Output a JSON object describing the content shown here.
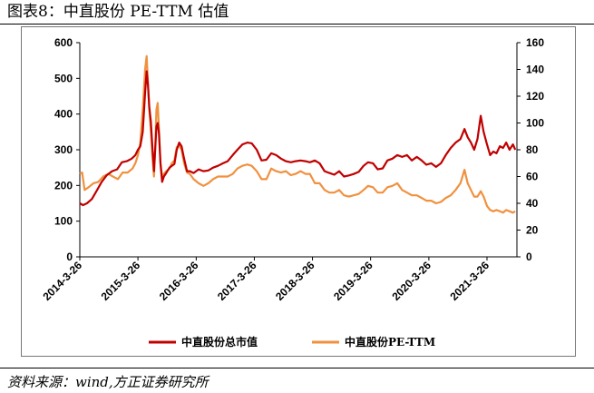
{
  "title": "图表8：中直股份 PE-TTM 估值",
  "source": "资料来源：wind,方正证券研究所",
  "chart_data": {
    "type": "line",
    "title": "",
    "xlabel": "",
    "ylabel": "",
    "ylim": [
      0,
      600
    ],
    "y2lim": [
      0,
      160
    ],
    "yticks": [
      0,
      100,
      200,
      300,
      400,
      500,
      600
    ],
    "y2ticks": [
      0,
      20,
      40,
      60,
      80,
      100,
      120,
      140,
      160
    ],
    "x_range": [
      "2014-03-26",
      "2021-09-30"
    ],
    "xticks": [
      "2014-3-26",
      "2015-3-26",
      "2016-3-26",
      "2017-3-26",
      "2018-3-26",
      "2019-3-26",
      "2020-3-26",
      "2021-3-26"
    ],
    "legend_position": "bottom",
    "series": [
      {
        "name": "中直股份总市值",
        "axis": "left",
        "color": "#c00000",
        "points": [
          [
            "2014-03-26",
            150
          ],
          [
            "2014-04-15",
            145
          ],
          [
            "2014-05-10",
            150
          ],
          [
            "2014-06-10",
            162
          ],
          [
            "2014-07-10",
            185
          ],
          [
            "2014-08-10",
            210
          ],
          [
            "2014-09-10",
            228
          ],
          [
            "2014-10-15",
            240
          ],
          [
            "2014-11-15",
            245
          ],
          [
            "2014-12-15",
            265
          ],
          [
            "2015-01-15",
            268
          ],
          [
            "2015-02-15",
            275
          ],
          [
            "2015-03-10",
            285
          ],
          [
            "2015-03-26",
            300
          ],
          [
            "2015-04-10",
            310
          ],
          [
            "2015-04-25",
            350
          ],
          [
            "2015-05-10",
            460
          ],
          [
            "2015-05-20",
            520
          ],
          [
            "2015-05-28",
            480
          ],
          [
            "2015-06-05",
            420
          ],
          [
            "2015-06-15",
            380
          ],
          [
            "2015-06-25",
            305
          ],
          [
            "2015-07-05",
            240
          ],
          [
            "2015-07-12",
            300
          ],
          [
            "2015-07-20",
            365
          ],
          [
            "2015-07-28",
            375
          ],
          [
            "2015-08-05",
            345
          ],
          [
            "2015-08-15",
            260
          ],
          [
            "2015-08-25",
            210
          ],
          [
            "2015-09-05",
            225
          ],
          [
            "2015-09-20",
            235
          ],
          [
            "2015-10-10",
            250
          ],
          [
            "2015-10-25",
            255
          ],
          [
            "2015-11-10",
            260
          ],
          [
            "2015-11-25",
            300
          ],
          [
            "2015-12-10",
            320
          ],
          [
            "2015-12-25",
            310
          ],
          [
            "2016-01-10",
            275
          ],
          [
            "2016-01-28",
            240
          ],
          [
            "2016-02-15",
            240
          ],
          [
            "2016-03-10",
            235
          ],
          [
            "2016-04-10",
            245
          ],
          [
            "2016-05-10",
            240
          ],
          [
            "2016-06-10",
            242
          ],
          [
            "2016-07-10",
            250
          ],
          [
            "2016-08-10",
            255
          ],
          [
            "2016-09-10",
            262
          ],
          [
            "2016-10-10",
            268
          ],
          [
            "2016-11-10",
            285
          ],
          [
            "2016-12-10",
            300
          ],
          [
            "2017-01-10",
            315
          ],
          [
            "2017-02-10",
            320
          ],
          [
            "2017-03-10",
            318
          ],
          [
            "2017-04-10",
            300
          ],
          [
            "2017-05-10",
            270
          ],
          [
            "2017-06-10",
            272
          ],
          [
            "2017-07-10",
            290
          ],
          [
            "2017-08-10",
            285
          ],
          [
            "2017-09-10",
            275
          ],
          [
            "2017-10-10",
            268
          ],
          [
            "2017-11-10",
            265
          ],
          [
            "2017-12-10",
            268
          ],
          [
            "2018-01-10",
            270
          ],
          [
            "2018-02-10",
            268
          ],
          [
            "2018-03-10",
            265
          ],
          [
            "2018-04-10",
            270
          ],
          [
            "2018-05-10",
            262
          ],
          [
            "2018-06-10",
            240
          ],
          [
            "2018-07-10",
            235
          ],
          [
            "2018-08-10",
            230
          ],
          [
            "2018-09-10",
            240
          ],
          [
            "2018-10-10",
            225
          ],
          [
            "2018-11-10",
            228
          ],
          [
            "2018-12-10",
            232
          ],
          [
            "2019-01-10",
            238
          ],
          [
            "2019-02-10",
            255
          ],
          [
            "2019-03-10",
            265
          ],
          [
            "2019-04-10",
            262
          ],
          [
            "2019-05-10",
            245
          ],
          [
            "2019-06-10",
            248
          ],
          [
            "2019-07-10",
            270
          ],
          [
            "2019-08-10",
            275
          ],
          [
            "2019-09-10",
            285
          ],
          [
            "2019-10-10",
            280
          ],
          [
            "2019-11-10",
            285
          ],
          [
            "2019-12-10",
            270
          ],
          [
            "2020-01-10",
            280
          ],
          [
            "2020-02-10",
            270
          ],
          [
            "2020-03-10",
            258
          ],
          [
            "2020-04-10",
            262
          ],
          [
            "2020-05-10",
            252
          ],
          [
            "2020-06-10",
            262
          ],
          [
            "2020-07-10",
            285
          ],
          [
            "2020-08-10",
            305
          ],
          [
            "2020-09-10",
            320
          ],
          [
            "2020-10-10",
            330
          ],
          [
            "2020-11-05",
            358
          ],
          [
            "2020-11-25",
            335
          ],
          [
            "2020-12-15",
            320
          ],
          [
            "2021-01-05",
            300
          ],
          [
            "2021-01-25",
            330
          ],
          [
            "2021-02-15",
            395
          ],
          [
            "2021-03-05",
            350
          ],
          [
            "2021-03-26",
            315
          ],
          [
            "2021-04-15",
            285
          ],
          [
            "2021-05-05",
            295
          ],
          [
            "2021-05-25",
            290
          ],
          [
            "2021-06-15",
            310
          ],
          [
            "2021-07-05",
            305
          ],
          [
            "2021-07-25",
            320
          ],
          [
            "2021-08-15",
            300
          ],
          [
            "2021-09-05",
            315
          ],
          [
            "2021-09-20",
            300
          ]
        ]
      },
      {
        "name": "中直股份PE-TTM",
        "axis": "right",
        "color": "#f0913f",
        "points": [
          [
            "2014-03-26",
            62
          ],
          [
            "2014-04-10",
            63
          ],
          [
            "2014-04-25",
            50
          ],
          [
            "2014-05-20",
            52
          ],
          [
            "2014-06-20",
            55
          ],
          [
            "2014-07-20",
            56
          ],
          [
            "2014-08-20",
            60
          ],
          [
            "2014-09-20",
            62
          ],
          [
            "2014-10-20",
            60
          ],
          [
            "2014-11-20",
            58
          ],
          [
            "2014-12-20",
            63
          ],
          [
            "2015-01-20",
            63
          ],
          [
            "2015-02-20",
            66
          ],
          [
            "2015-03-10",
            70
          ],
          [
            "2015-03-26",
            76
          ],
          [
            "2015-04-10",
            85
          ],
          [
            "2015-04-25",
            110
          ],
          [
            "2015-05-10",
            140
          ],
          [
            "2015-05-20",
            150
          ],
          [
            "2015-05-28",
            130
          ],
          [
            "2015-06-05",
            110
          ],
          [
            "2015-06-15",
            95
          ],
          [
            "2015-06-25",
            75
          ],
          [
            "2015-07-05",
            60
          ],
          [
            "2015-07-12",
            80
          ],
          [
            "2015-07-20",
            110
          ],
          [
            "2015-07-28",
            115
          ],
          [
            "2015-08-05",
            95
          ],
          [
            "2015-08-15",
            70
          ],
          [
            "2015-08-25",
            60
          ],
          [
            "2015-09-05",
            62
          ],
          [
            "2015-09-20",
            64
          ],
          [
            "2015-10-10",
            66
          ],
          [
            "2015-10-25",
            70
          ],
          [
            "2015-11-10",
            72
          ],
          [
            "2015-11-25",
            82
          ],
          [
            "2015-12-10",
            83
          ],
          [
            "2015-12-25",
            80
          ],
          [
            "2016-01-10",
            70
          ],
          [
            "2016-01-28",
            63
          ],
          [
            "2016-02-15",
            62
          ],
          [
            "2016-03-10",
            58
          ],
          [
            "2016-04-10",
            55
          ],
          [
            "2016-05-10",
            53
          ],
          [
            "2016-06-10",
            55
          ],
          [
            "2016-07-10",
            58
          ],
          [
            "2016-08-10",
            60
          ],
          [
            "2016-09-10",
            60
          ],
          [
            "2016-10-10",
            60
          ],
          [
            "2016-11-10",
            62
          ],
          [
            "2016-12-10",
            66
          ],
          [
            "2017-01-10",
            68
          ],
          [
            "2017-02-10",
            69
          ],
          [
            "2017-03-10",
            68
          ],
          [
            "2017-04-10",
            64
          ],
          [
            "2017-05-10",
            58
          ],
          [
            "2017-06-10",
            58
          ],
          [
            "2017-07-10",
            66
          ],
          [
            "2017-08-10",
            64
          ],
          [
            "2017-09-10",
            63
          ],
          [
            "2017-10-10",
            64
          ],
          [
            "2017-11-10",
            61
          ],
          [
            "2017-12-10",
            62
          ],
          [
            "2018-01-10",
            64
          ],
          [
            "2018-02-10",
            62
          ],
          [
            "2018-03-10",
            62
          ],
          [
            "2018-04-10",
            55
          ],
          [
            "2018-05-10",
            55
          ],
          [
            "2018-06-10",
            50
          ],
          [
            "2018-07-10",
            48
          ],
          [
            "2018-08-10",
            48
          ],
          [
            "2018-09-10",
            50
          ],
          [
            "2018-10-10",
            46
          ],
          [
            "2018-11-10",
            45
          ],
          [
            "2018-12-10",
            46
          ],
          [
            "2019-01-10",
            47
          ],
          [
            "2019-02-10",
            50
          ],
          [
            "2019-03-10",
            53
          ],
          [
            "2019-04-10",
            52
          ],
          [
            "2019-05-10",
            48
          ],
          [
            "2019-06-10",
            48
          ],
          [
            "2019-07-10",
            52
          ],
          [
            "2019-08-10",
            53
          ],
          [
            "2019-09-10",
            55
          ],
          [
            "2019-10-10",
            50
          ],
          [
            "2019-11-10",
            48
          ],
          [
            "2019-12-10",
            46
          ],
          [
            "2020-01-10",
            46
          ],
          [
            "2020-02-10",
            44
          ],
          [
            "2020-03-10",
            42
          ],
          [
            "2020-04-10",
            42
          ],
          [
            "2020-05-10",
            40
          ],
          [
            "2020-06-10",
            41
          ],
          [
            "2020-07-10",
            44
          ],
          [
            "2020-08-10",
            46
          ],
          [
            "2020-09-10",
            50
          ],
          [
            "2020-10-10",
            55
          ],
          [
            "2020-11-05",
            65
          ],
          [
            "2020-11-25",
            55
          ],
          [
            "2020-12-15",
            50
          ],
          [
            "2021-01-05",
            45
          ],
          [
            "2021-01-25",
            45
          ],
          [
            "2021-02-15",
            49
          ],
          [
            "2021-03-05",
            45
          ],
          [
            "2021-03-26",
            38
          ],
          [
            "2021-04-15",
            35
          ],
          [
            "2021-05-05",
            34
          ],
          [
            "2021-05-25",
            35
          ],
          [
            "2021-06-15",
            34
          ],
          [
            "2021-07-05",
            33
          ],
          [
            "2021-07-25",
            35
          ],
          [
            "2021-08-15",
            34
          ],
          [
            "2021-09-05",
            33
          ],
          [
            "2021-09-20",
            34
          ]
        ]
      }
    ]
  }
}
